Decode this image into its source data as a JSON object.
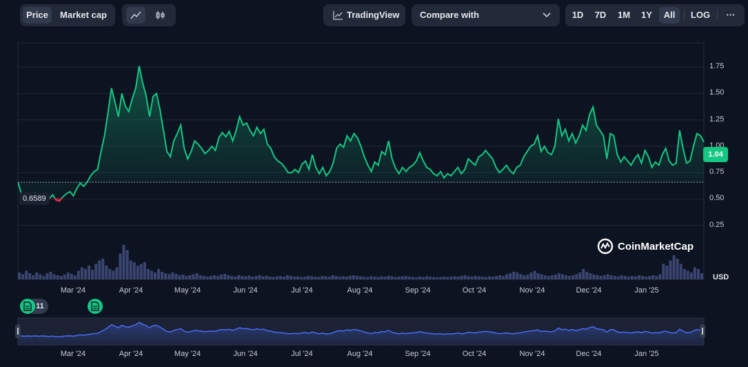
{
  "tabs": [
    {
      "label": "Price",
      "active": true
    },
    {
      "label": "Market cap",
      "active": false
    }
  ],
  "chart_type_toggles": [
    {
      "icon": "line-chart-icon",
      "active": true
    },
    {
      "icon": "candlestick-icon",
      "active": false
    }
  ],
  "tradingview_label": "TradingView",
  "compare_label": "Compare with",
  "ranges": [
    {
      "label": "1D",
      "active": false
    },
    {
      "label": "7D",
      "active": false
    },
    {
      "label": "1M",
      "active": false
    },
    {
      "label": "1Y",
      "active": false
    },
    {
      "label": "All",
      "active": true
    }
  ],
  "log_label": "LOG",
  "more_label": "···",
  "current_price": "1.04",
  "baseline_price": "0.6589",
  "brand": "CoinMarketCap",
  "currency": "USD",
  "event_count": "11",
  "colors": {
    "up": "#16c784",
    "down": "#ea3943",
    "bg": "#0d1421",
    "navigator": "#4a6cf7"
  },
  "chart_data": {
    "type": "area",
    "x_labels": [
      "Mar '24",
      "Apr '24",
      "May '24",
      "Jun '24",
      "Jul '24",
      "Aug '24",
      "Sep '24",
      "Oct '24",
      "Nov '24",
      "Dec '24",
      "Jan '25"
    ],
    "y_ticks": [
      "1.75",
      "1.50",
      "1.25",
      "1.00",
      "0.75",
      "0.50",
      "0.25"
    ],
    "baseline": 0.6589,
    "ylim": [
      0,
      2.0
    ],
    "series": [
      {
        "values": [
          0.66,
          0.55,
          0.52,
          0.55,
          0.53,
          0.56,
          0.52,
          0.55,
          0.53,
          0.5,
          0.54,
          0.49,
          0.48,
          0.52,
          0.55,
          0.57,
          0.53,
          0.6,
          0.65,
          0.62,
          0.66,
          0.72,
          0.76,
          0.78,
          0.95,
          1.1,
          1.32,
          1.55,
          1.42,
          1.28,
          1.5,
          1.38,
          1.33,
          1.45,
          1.55,
          1.76,
          1.6,
          1.48,
          1.28,
          1.47,
          1.5,
          1.35,
          1.15,
          0.95,
          0.9,
          1.05,
          1.12,
          1.2,
          0.98,
          0.88,
          0.95,
          1.05,
          1.02,
          0.98,
          0.93,
          0.96,
          1.0,
          0.96,
          1.08,
          1.13,
          1.09,
          1.14,
          1.05,
          1.15,
          1.28,
          1.2,
          1.22,
          1.15,
          1.1,
          1.18,
          1.12,
          1.16,
          1.02,
          0.98,
          0.9,
          0.86,
          0.84,
          0.8,
          0.75,
          0.75,
          0.78,
          0.75,
          0.83,
          0.86,
          0.78,
          0.92,
          0.8,
          0.74,
          0.8,
          0.72,
          0.76,
          0.84,
          0.98,
          1.02,
          0.99,
          1.1,
          1.05,
          1.12,
          1.08,
          1.0,
          0.9,
          0.82,
          0.76,
          0.85,
          0.82,
          0.95,
          0.92,
          1.05,
          0.88,
          0.79,
          0.74,
          0.8,
          0.76,
          0.8,
          0.82,
          0.86,
          0.94,
          0.86,
          0.8,
          0.78,
          0.74,
          0.72,
          0.76,
          0.7,
          0.74,
          0.72,
          0.76,
          0.8,
          0.74,
          0.78,
          0.88,
          0.85,
          0.82,
          0.9,
          0.92,
          0.96,
          0.92,
          0.88,
          0.8,
          0.75,
          0.78,
          0.82,
          0.77,
          0.74,
          0.8,
          0.82,
          0.9,
          0.95,
          1.0,
          1.02,
          1.1,
          0.95,
          1.0,
          0.94,
          0.92,
          1.0,
          1.26,
          1.1,
          1.16,
          1.05,
          1.12,
          1.03,
          1.1,
          1.2,
          1.15,
          1.3,
          1.37,
          1.2,
          1.15,
          1.1,
          0.88,
          1.12,
          1.1,
          0.92,
          0.85,
          0.9,
          0.86,
          0.82,
          0.88,
          0.92,
          0.84,
          0.96,
          0.9,
          0.8,
          0.85,
          0.82,
          0.92,
          0.98,
          0.86,
          0.82,
          0.84,
          1.15,
          0.98,
          0.84,
          0.86,
          1.0,
          1.12,
          1.1,
          1.04
        ]
      }
    ],
    "volume": [
      0.2,
      0.15,
      0.25,
      0.18,
      0.12,
      0.2,
      0.15,
      0.1,
      0.18,
      0.22,
      0.15,
      0.12,
      0.1,
      0.14,
      0.2,
      0.16,
      0.12,
      0.25,
      0.35,
      0.3,
      0.4,
      0.28,
      0.45,
      0.55,
      0.6,
      0.4,
      0.3,
      0.25,
      0.35,
      0.75,
      1.0,
      0.85,
      0.55,
      0.5,
      0.4,
      0.45,
      0.5,
      0.3,
      0.25,
      0.2,
      0.3,
      0.22,
      0.18,
      0.15,
      0.2,
      0.16,
      0.12,
      0.14,
      0.1,
      0.12,
      0.15,
      0.18,
      0.12,
      0.1,
      0.08,
      0.1,
      0.12,
      0.1,
      0.14,
      0.16,
      0.12,
      0.1,
      0.08,
      0.12,
      0.1,
      0.09,
      0.11,
      0.08,
      0.1,
      0.12,
      0.09,
      0.1,
      0.08,
      0.07,
      0.09,
      0.1,
      0.08,
      0.12,
      0.1,
      0.08,
      0.09,
      0.07,
      0.08,
      0.1,
      0.09,
      0.08,
      0.07,
      0.1,
      0.09,
      0.08,
      0.12,
      0.1,
      0.08,
      0.09,
      0.08,
      0.1,
      0.12,
      0.1,
      0.09,
      0.08,
      0.07,
      0.09,
      0.08,
      0.07,
      0.09,
      0.08,
      0.1,
      0.09,
      0.07,
      0.08,
      0.09,
      0.1,
      0.08,
      0.07,
      0.06,
      0.08,
      0.07,
      0.09,
      0.08,
      0.07,
      0.06,
      0.07,
      0.08,
      0.07,
      0.08,
      0.09,
      0.08,
      0.1,
      0.12,
      0.09,
      0.08,
      0.1,
      0.09,
      0.08,
      0.07,
      0.09,
      0.08,
      0.1,
      0.12,
      0.1,
      0.15,
      0.18,
      0.22,
      0.2,
      0.15,
      0.12,
      0.14,
      0.2,
      0.25,
      0.18,
      0.15,
      0.12,
      0.1,
      0.12,
      0.14,
      0.18,
      0.15,
      0.12,
      0.1,
      0.12,
      0.15,
      0.2,
      0.3,
      0.22,
      0.18,
      0.14,
      0.12,
      0.1,
      0.12,
      0.15,
      0.12,
      0.1,
      0.09,
      0.12,
      0.1,
      0.08,
      0.1,
      0.09,
      0.12,
      0.1,
      0.08,
      0.1,
      0.12,
      0.1,
      0.15,
      0.45,
      0.4,
      0.55,
      0.7,
      0.6,
      0.45,
      0.3,
      0.25,
      0.2,
      0.35,
      0.3,
      0.18
    ]
  }
}
